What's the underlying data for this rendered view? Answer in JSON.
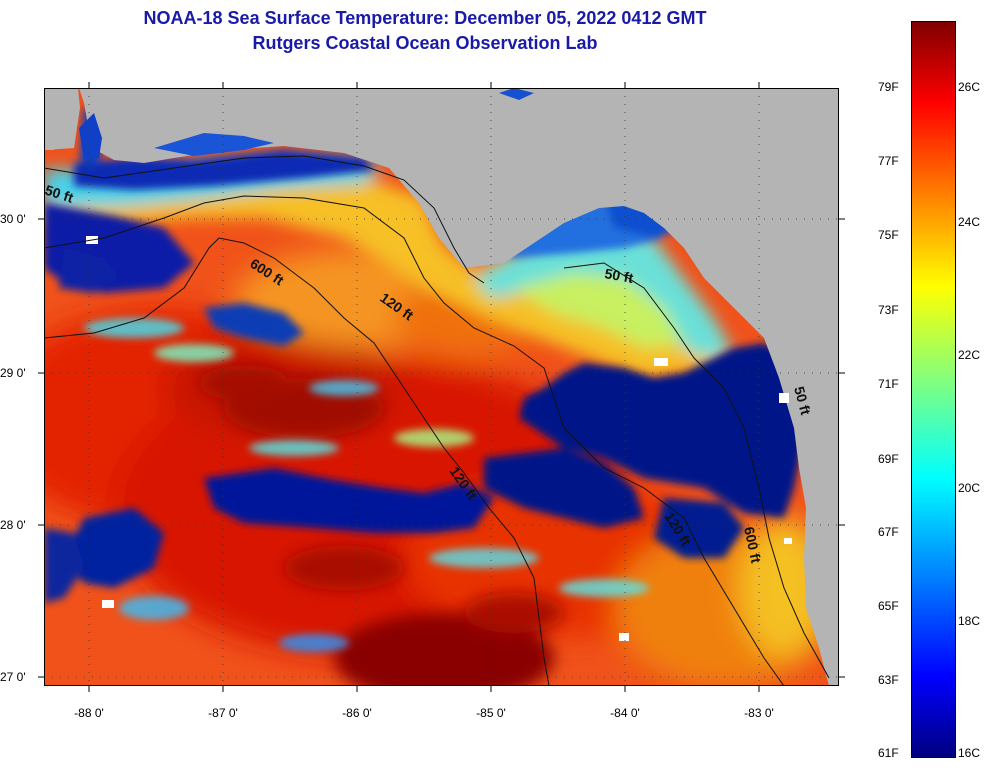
{
  "header": {
    "title_line1": "NOAA-18 Sea Surface Temperature:  December 05, 2022 0412 GMT",
    "title_line2": "Rutgers Coastal Ocean Observation Lab"
  },
  "axes": {
    "longitude_labels": [
      "-88 0'",
      "-87 0'",
      "-86 0'",
      "-85 0'",
      "-84 0'",
      "-83 0'"
    ],
    "latitude_labels": [
      "30 0'",
      "29 0'",
      "28 0'",
      "27 0'"
    ]
  },
  "contours": {
    "labels": [
      "50 ft",
      "600 ft",
      "120 ft",
      "50 ft",
      "120 ft",
      "600 ft",
      "120 ft",
      "50 ft"
    ]
  },
  "colorbar": {
    "fahrenheit_labels": [
      "79F",
      "77F",
      "75F",
      "73F",
      "71F",
      "69F",
      "67F",
      "65F",
      "63F",
      "61F"
    ],
    "celsius_labels": [
      "26C",
      "24C",
      "22C",
      "20C",
      "18C",
      "16C"
    ]
  },
  "colors": {
    "land": "#b4b4b4",
    "title": "#1a1aa8",
    "warm": "#e51a00",
    "cold": "#00148c",
    "dark_red": "#800000"
  }
}
